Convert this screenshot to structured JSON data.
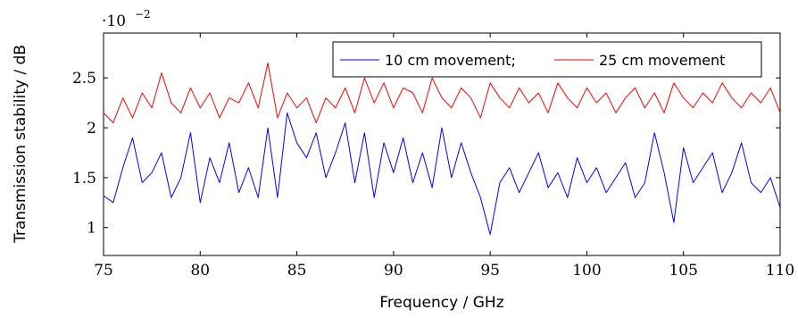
{
  "chart_data": {
    "type": "line",
    "xlabel": "Frequency / GHz",
    "ylabel": "Transmission stability / dB",
    "y_scale_label": "·10",
    "y_scale_exponent": "−2",
    "xlim": [
      75,
      110
    ],
    "ylim": [
      0.72,
      2.95
    ],
    "x_ticks": [
      75,
      80,
      85,
      90,
      95,
      100,
      105,
      110
    ],
    "x_tick_labels": [
      "75",
      "80",
      "85",
      "90",
      "95",
      "100",
      "105",
      "110"
    ],
    "y_ticks": [
      1,
      1.5,
      2,
      2.5
    ],
    "y_tick_labels": [
      "1",
      "1.5",
      "2",
      "2.5"
    ],
    "grid": false,
    "legend_position": "top-right",
    "series": [
      {
        "name": "10 cm movement;",
        "color": "#0000ff",
        "x": [
          75.0,
          75.5,
          76.0,
          76.5,
          77.0,
          77.5,
          78.0,
          78.5,
          79.0,
          79.5,
          80.0,
          80.5,
          81.0,
          81.5,
          82.0,
          82.5,
          83.0,
          83.5,
          84.0,
          84.5,
          85.0,
          85.5,
          86.0,
          86.5,
          87.0,
          87.5,
          88.0,
          88.5,
          89.0,
          89.5,
          90.0,
          90.5,
          91.0,
          91.5,
          92.0,
          92.5,
          93.0,
          93.5,
          94.0,
          94.5,
          95.0,
          95.5,
          96.0,
          96.5,
          97.0,
          97.5,
          98.0,
          98.5,
          99.0,
          99.5,
          100.0,
          100.5,
          101.0,
          101.5,
          102.0,
          102.5,
          103.0,
          103.5,
          104.0,
          104.5,
          105.0,
          105.5,
          106.0,
          106.5,
          107.0,
          107.5,
          108.0,
          108.5,
          109.0,
          109.5,
          110.0
        ],
        "y": [
          1.32,
          1.25,
          1.6,
          1.9,
          1.45,
          1.55,
          1.75,
          1.3,
          1.5,
          1.95,
          1.25,
          1.7,
          1.45,
          1.85,
          1.35,
          1.6,
          1.3,
          2.0,
          1.3,
          2.15,
          1.85,
          1.7,
          1.95,
          1.5,
          1.75,
          2.05,
          1.45,
          1.95,
          1.3,
          1.85,
          1.55,
          1.9,
          1.45,
          1.75,
          1.4,
          2.0,
          1.5,
          1.85,
          1.55,
          1.3,
          0.93,
          1.45,
          1.6,
          1.35,
          1.55,
          1.75,
          1.4,
          1.55,
          1.3,
          1.7,
          1.45,
          1.6,
          1.35,
          1.5,
          1.65,
          1.3,
          1.45,
          1.95,
          1.55,
          1.05,
          1.8,
          1.45,
          1.6,
          1.75,
          1.35,
          1.55,
          1.85,
          1.45,
          1.35,
          1.5,
          1.2
        ]
      },
      {
        "name": "25 cm movement",
        "color": "#ff0000",
        "x": [
          75.0,
          75.5,
          76.0,
          76.5,
          77.0,
          77.5,
          78.0,
          78.5,
          79.0,
          79.5,
          80.0,
          80.5,
          81.0,
          81.5,
          82.0,
          82.5,
          83.0,
          83.5,
          84.0,
          84.5,
          85.0,
          85.5,
          86.0,
          86.5,
          87.0,
          87.5,
          88.0,
          88.5,
          89.0,
          89.5,
          90.0,
          90.5,
          91.0,
          91.5,
          92.0,
          92.5,
          93.0,
          93.5,
          94.0,
          94.5,
          95.0,
          95.5,
          96.0,
          96.5,
          97.0,
          97.5,
          98.0,
          98.5,
          99.0,
          99.5,
          100.0,
          100.5,
          101.0,
          101.5,
          102.0,
          102.5,
          103.0,
          103.5,
          104.0,
          104.5,
          105.0,
          105.5,
          106.0,
          106.5,
          107.0,
          107.5,
          108.0,
          108.5,
          109.0,
          109.5,
          110.0
        ],
        "y": [
          2.15,
          2.05,
          2.3,
          2.1,
          2.35,
          2.2,
          2.55,
          2.25,
          2.15,
          2.4,
          2.2,
          2.35,
          2.1,
          2.3,
          2.25,
          2.45,
          2.2,
          2.65,
          2.1,
          2.35,
          2.2,
          2.3,
          2.05,
          2.3,
          2.2,
          2.4,
          2.15,
          2.5,
          2.25,
          2.45,
          2.2,
          2.4,
          2.35,
          2.15,
          2.5,
          2.3,
          2.2,
          2.4,
          2.3,
          2.1,
          2.45,
          2.3,
          2.2,
          2.4,
          2.25,
          2.35,
          2.15,
          2.45,
          2.3,
          2.2,
          2.4,
          2.25,
          2.35,
          2.15,
          2.3,
          2.4,
          2.2,
          2.35,
          2.15,
          2.45,
          2.3,
          2.2,
          2.35,
          2.25,
          2.45,
          2.3,
          2.2,
          2.35,
          2.25,
          2.4,
          2.15
        ]
      }
    ]
  }
}
